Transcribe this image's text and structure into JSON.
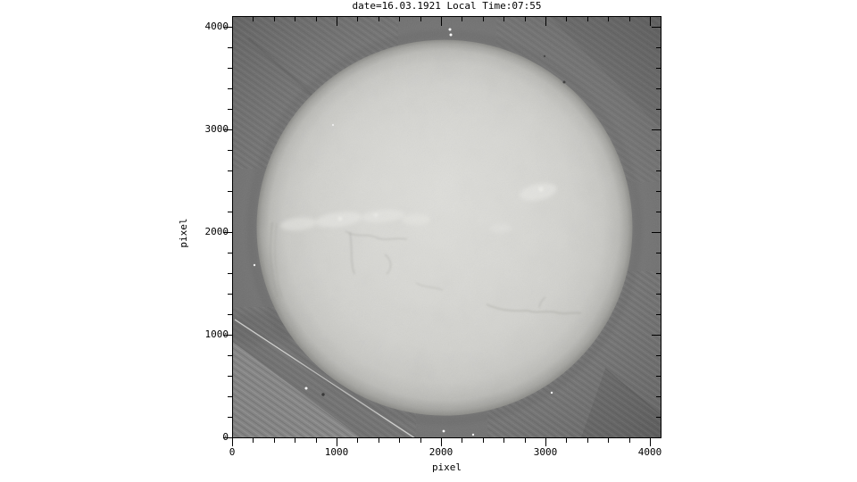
{
  "colors": {
    "figure_background": "#ffffff",
    "plate_background": "#707070",
    "sun_disk": "#d2d2ce",
    "sun_bright": "#dededa",
    "axis": "#000000"
  },
  "chart_data": {
    "type": "heatmap",
    "title": "date=16.03.1921 Local Time:07:55",
    "xlabel": "pixel",
    "ylabel": "pixel",
    "xlim": [
      0,
      4100
    ],
    "ylim": [
      0,
      4090
    ],
    "xticks": [
      0,
      1000,
      2000,
      3000,
      4000
    ],
    "yticks": [
      0,
      1000,
      2000,
      3000,
      4000
    ],
    "minor_tick_interval": 200,
    "grid": false,
    "legend": false,
    "image_content": {
      "description": "Historical full-disk solar spectroheliogram scanned from a photographic plate: bright solar disk centered on a dark grey plate background with diagonal scan scratches, dust specks, corner hatching artifacts and a light plate-edge region in the lower-left corner",
      "disk_center_data": [
        2034,
        2043
      ],
      "disk_radius_data": 1815,
      "features": [
        "bright plage band left of disk center",
        "bright plage region right of disk center",
        "thin dark filaments across lower disk",
        "dark diagonal scratch top-left corner",
        "bright diagonal scratch bottom-left corner",
        "light striped plate-edge triangle bottom-left",
        "pair of white dust specks above north limb",
        "scattered white and dark specks near south limb"
      ]
    }
  }
}
